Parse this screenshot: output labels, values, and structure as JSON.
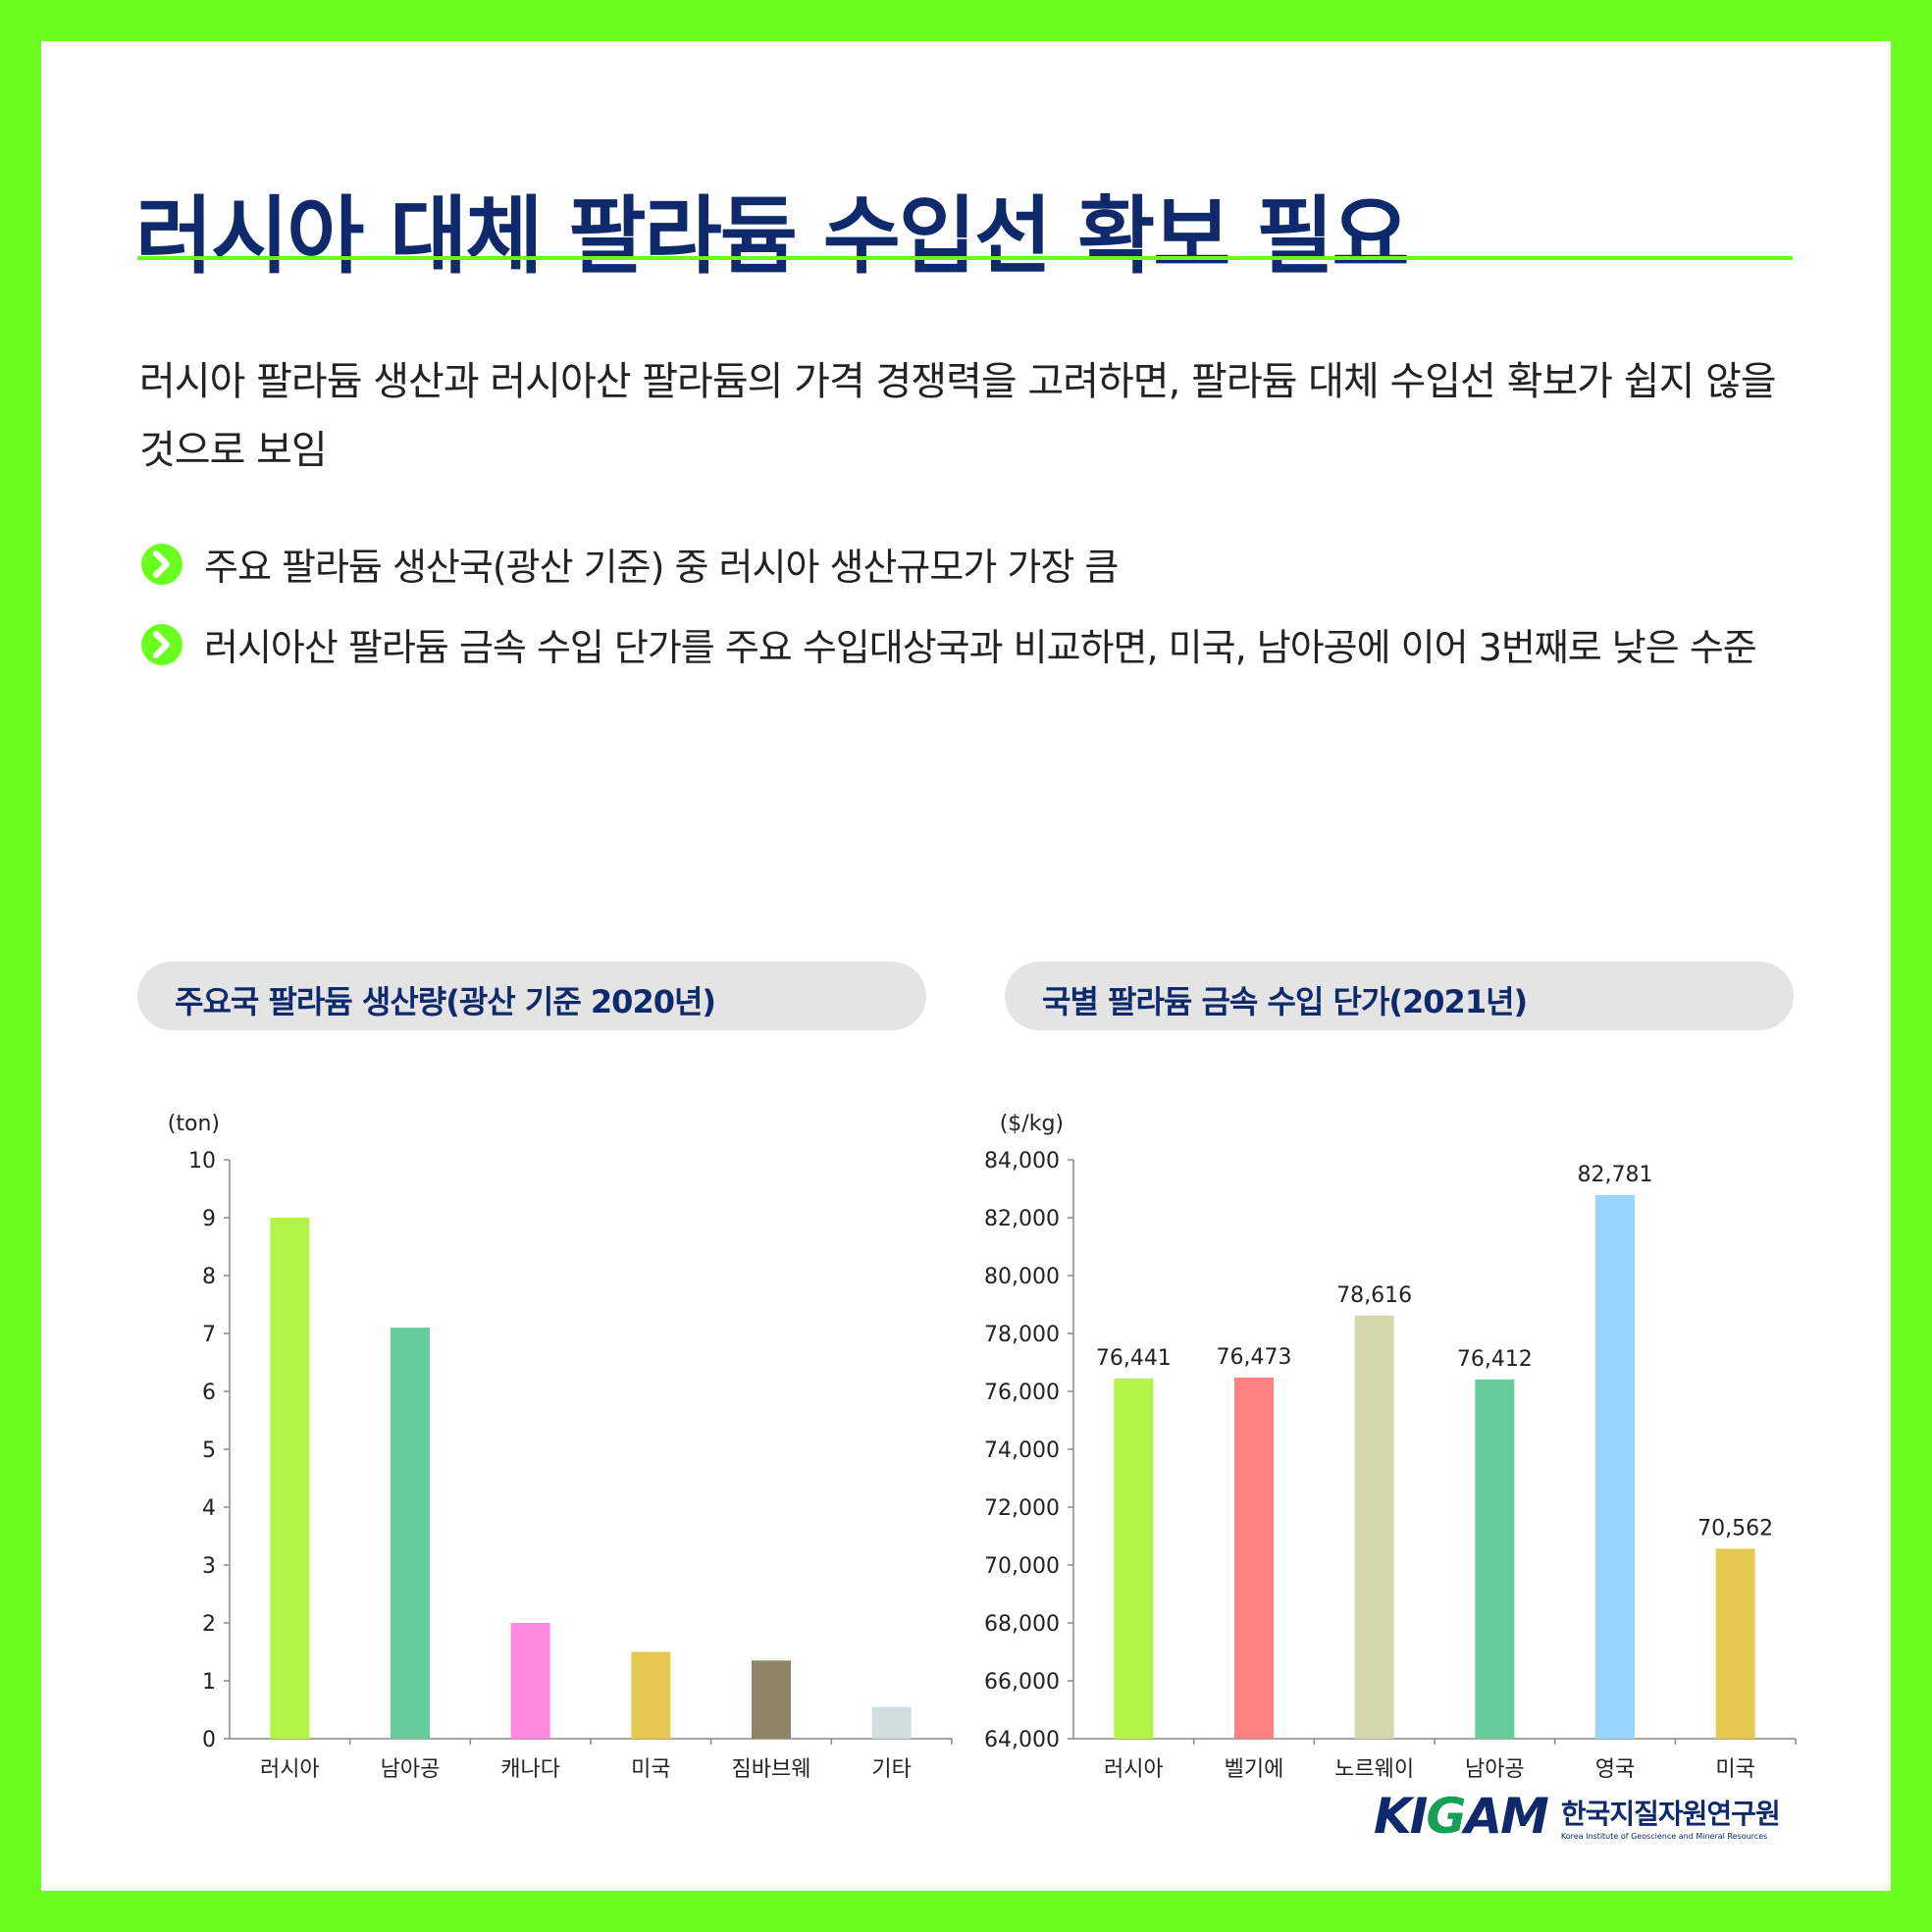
{
  "title": "러시아 대체 팔라듐 수입선 확보 필요",
  "intro": "러시아 팔라듐 생산과 러시아산 팔라듐의 가격 경쟁력을 고려하면, 팔라듐 대체 수입선 확보가 쉽지 않을 것으로 보임",
  "bullets": [
    "주요 팔라듐 생산국(광산 기준) 중 러시아 생산규모가 가장 큼",
    "러시아산 팔라듐 금속 수입 단가를 주요 수입대상국과 비교하면, 미국, 남아공에 이어 3번째로 낮은 수준"
  ],
  "colors": {
    "frame": "#6bff1f",
    "title": "#0e2a6c",
    "pill": "#e4e4e4",
    "bullet_icon": "#6bff1f"
  },
  "chart_data": [
    {
      "type": "bar",
      "title": "주요국 팔라듐 생산량(광산 기준 2020년)",
      "ylabel": "(ton)",
      "xlabel": "",
      "ylim": [
        0,
        10
      ],
      "yticks": [
        "0",
        "1",
        "2",
        "3",
        "4",
        "5",
        "6",
        "7",
        "8",
        "9",
        "10"
      ],
      "categories": [
        "러시아",
        "남아공",
        "캐나다",
        "미국",
        "짐바브웨",
        "기타"
      ],
      "values": [
        9.0,
        7.1,
        2.0,
        1.5,
        1.35,
        0.55
      ],
      "colors": [
        "#b2f547",
        "#66cc99",
        "#ff88e0",
        "#e6c74f",
        "#8f8566",
        "#d0dedd"
      ],
      "data_labels": []
    },
    {
      "type": "bar",
      "title": "국별 팔라듐 금속 수입 단가(2021년)",
      "ylabel": "($/kg)",
      "xlabel": "",
      "ylim": [
        64000,
        84000
      ],
      "yticks": [
        "64,000",
        "66,000",
        "68,000",
        "70,000",
        "72,000",
        "74,000",
        "76,000",
        "78,000",
        "80,000",
        "82,000",
        "84,000"
      ],
      "categories": [
        "러시아",
        "벨기에",
        "노르웨이",
        "남아공",
        "영국",
        "미국"
      ],
      "values": [
        76441,
        76473,
        78616,
        76412,
        82781,
        70562
      ],
      "colors": [
        "#b2f547",
        "#ff8080",
        "#d6d6ac",
        "#66cc99",
        "#99d6ff",
        "#e6c74f"
      ],
      "data_labels": [
        "76,441",
        "76,473",
        "78,616",
        "76,412",
        "82,781",
        "70,562"
      ]
    }
  ],
  "logo": {
    "mark": "KIGAM",
    "name": "한국지질자원연구원",
    "name_en": "Korea Institute of Geoscience and Mineral Resources"
  }
}
